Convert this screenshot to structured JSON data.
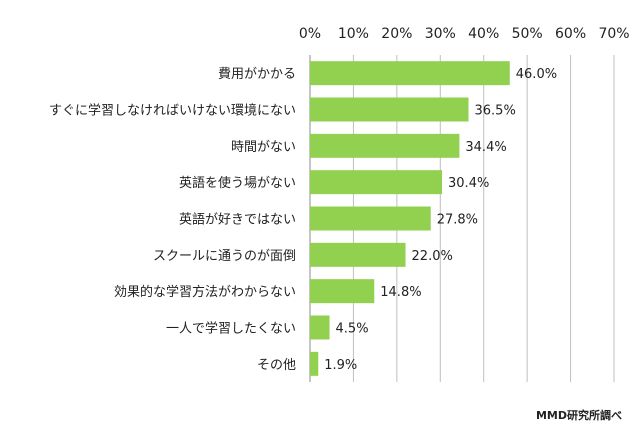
{
  "chart_data": {
    "type": "bar",
    "orientation": "horizontal",
    "categories": [
      "費用がかかる",
      "すぐに学習しなければいけない環境にない",
      "時間がない",
      "英語を使う場がない",
      "英語が好きではない",
      "スクールに通うのが面倒",
      "効果的な学習方法がわからない",
      "一人で学習したくない",
      "その他"
    ],
    "values": [
      46.0,
      36.5,
      34.4,
      30.4,
      27.8,
      22.0,
      14.8,
      4.5,
      1.9
    ],
    "value_labels": [
      "46.0%",
      "36.5%",
      "34.4%",
      "30.4%",
      "27.8%",
      "22.0%",
      "14.8%",
      "4.5%",
      "1.9%"
    ],
    "xlim": [
      0,
      70
    ],
    "x_ticks": [
      "0%",
      "10%",
      "20%",
      "30%",
      "40%",
      "50%",
      "60%",
      "70%"
    ],
    "x_axis_position": "top",
    "grid": true,
    "bar_color": "#92d050",
    "grid_color": "#bfbfbf",
    "title": "",
    "xlabel": "",
    "ylabel": ""
  },
  "credit": "MMD研究所調べ"
}
